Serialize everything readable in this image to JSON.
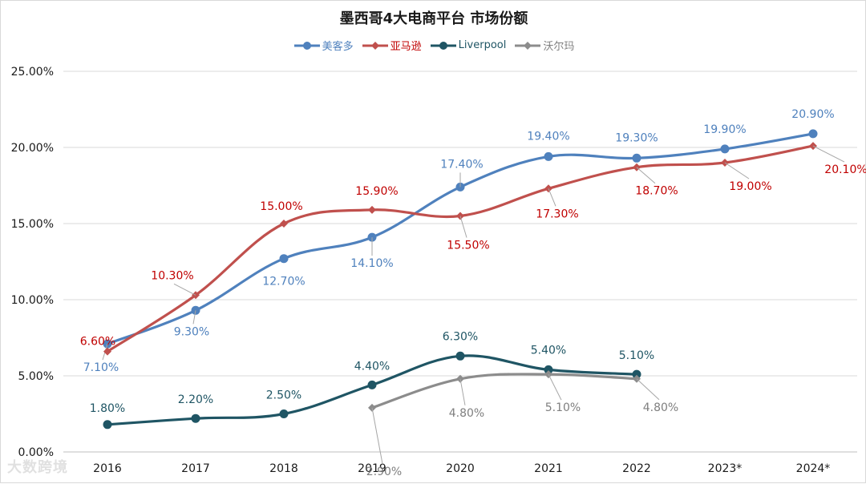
{
  "chart_data": {
    "type": "line",
    "title": "墨西哥4大电商平台 市场份额",
    "xlabel": "",
    "ylabel": "",
    "categories": [
      "2016",
      "2017",
      "2018",
      "2019",
      "2020",
      "2021",
      "2022",
      "2023*",
      "2024*"
    ],
    "ylim": [
      0,
      25
    ],
    "yticks": [
      "0.00%",
      "5.00%",
      "10.00%",
      "15.00%",
      "20.00%",
      "25.00%"
    ],
    "grid": true,
    "legend_position": "top-center",
    "series": [
      {
        "name": "美客多",
        "color": "#4f81bd",
        "label_color": "#4f81bd",
        "marker": "circle",
        "values": [
          7.1,
          9.3,
          12.7,
          14.1,
          17.4,
          19.4,
          19.3,
          19.9,
          20.9
        ],
        "labels": [
          "7.10%",
          "9.30%",
          "12.70%",
          "14.10%",
          "17.40%",
          "19.40%",
          "19.30%",
          "19.90%",
          "20.90%"
        ]
      },
      {
        "name": "亚马逊",
        "color": "#c0504d",
        "label_color": "#c00000",
        "marker": "diamond",
        "values": [
          6.6,
          10.3,
          15.0,
          15.9,
          15.5,
          17.3,
          18.7,
          19.0,
          20.1
        ],
        "labels": [
          "6.60%",
          "10.30%",
          "15.00%",
          "15.90%",
          "15.50%",
          "17.30%",
          "18.70%",
          "19.00%",
          "20.10%"
        ]
      },
      {
        "name": "Liverpool",
        "color": "#1f5564",
        "label_color": "#1f5564",
        "marker": "circle",
        "values": [
          1.8,
          2.2,
          2.5,
          4.4,
          6.3,
          5.4,
          5.1,
          null,
          null
        ],
        "labels": [
          "1.80%",
          "2.20%",
          "2.50%",
          "4.40%",
          "6.30%",
          "5.40%",
          "5.10%",
          null,
          null
        ]
      },
      {
        "name": "沃尔玛",
        "color": "#8c8c8c",
        "label_color": "#7f7f7f",
        "marker": "diamond",
        "values": [
          null,
          null,
          null,
          2.9,
          4.8,
          5.1,
          4.8,
          null,
          null
        ],
        "labels": [
          null,
          null,
          null,
          "2.90%",
          "4.80%",
          "5.10%",
          "4.80%",
          null,
          null
        ]
      }
    ]
  },
  "watermark": "大数跨境"
}
